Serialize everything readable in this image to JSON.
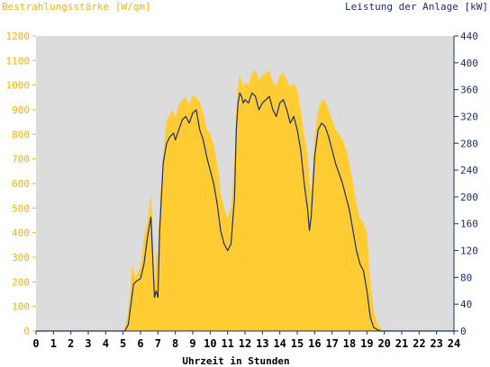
{
  "chart_data": {
    "type": "area",
    "left_axis_title": "Bestrahlungsstärke [W/qm]",
    "right_axis_title": "Leistung der Anlage [kW]",
    "xlabel": "Uhrzeit in Stunden",
    "x_ticks": [
      "0",
      "1",
      "2",
      "3",
      "4",
      "5",
      "6",
      "7",
      "8",
      "9",
      "10",
      "11",
      "12",
      "13",
      "14",
      "15",
      "16",
      "17",
      "18",
      "19",
      "20",
      "21",
      "22",
      "23",
      "24"
    ],
    "y_left_ticks": [
      "0",
      "100",
      "200",
      "300",
      "400",
      "500",
      "600",
      "700",
      "800",
      "900",
      "1000",
      "1100",
      "1200"
    ],
    "y_right_ticks": [
      "0",
      "40",
      "80",
      "120",
      "160",
      "200",
      "240",
      "280",
      "320",
      "360",
      "400",
      "440"
    ],
    "xlim": [
      0,
      24
    ],
    "ylim_left": [
      0,
      1200
    ],
    "ylim_right": [
      0,
      440
    ],
    "grid": false,
    "colors": {
      "plot_background": "#dcdcdc",
      "irradiance_fill": "#ffcc33",
      "power_line": "#1a2e6e",
      "left_axis_text": "#f0b400",
      "right_axis_text": "#1a2e6e",
      "bottom_axis_text": "#000000"
    },
    "series": [
      {
        "name": "Bestrahlungsstärke [W/qm]",
        "axis": "left",
        "kind": "area",
        "x": [
          0,
          5.0,
          5.2,
          5.4,
          5.5,
          5.7,
          6.0,
          6.2,
          6.4,
          6.6,
          6.7,
          6.8,
          6.9,
          7.0,
          7.1,
          7.3,
          7.5,
          7.7,
          7.8,
          8.0,
          8.2,
          8.4,
          8.6,
          8.8,
          9.0,
          9.2,
          9.4,
          9.6,
          9.8,
          10.0,
          10.2,
          10.4,
          10.5,
          10.6,
          10.8,
          11.0,
          11.2,
          11.4,
          11.5,
          11.6,
          11.7,
          11.8,
          11.9,
          12.0,
          12.2,
          12.4,
          12.6,
          12.8,
          13.0,
          13.2,
          13.4,
          13.6,
          13.8,
          14.0,
          14.2,
          14.4,
          14.6,
          14.8,
          15.0,
          15.2,
          15.4,
          15.6,
          15.7,
          15.8,
          16.0,
          16.2,
          16.4,
          16.6,
          16.8,
          17.0,
          17.2,
          17.4,
          17.6,
          17.8,
          18.0,
          18.2,
          18.4,
          18.6,
          18.8,
          19.0,
          19.2,
          19.4,
          19.6,
          19.8,
          20.0,
          24
        ],
        "y": [
          0,
          0,
          40,
          150,
          270,
          220,
          260,
          380,
          450,
          560,
          400,
          200,
          300,
          330,
          500,
          720,
          860,
          880,
          900,
          870,
          920,
          940,
          950,
          920,
          960,
          950,
          930,
          890,
          820,
          800,
          760,
          680,
          640,
          560,
          500,
          460,
          500,
          700,
          900,
          1000,
          1040,
          1020,
          990,
          1010,
          1000,
          1050,
          1060,
          1020,
          1040,
          1050,
          1060,
          1010,
          1000,
          1040,
          1050,
          1020,
          990,
          1010,
          980,
          900,
          800,
          720,
          600,
          560,
          800,
          900,
          940,
          940,
          900,
          860,
          820,
          800,
          780,
          740,
          680,
          600,
          520,
          460,
          440,
          400,
          200,
          80,
          30,
          10,
          0,
          0
        ]
      },
      {
        "name": "Leistung der Anlage [kW]",
        "axis": "right",
        "kind": "line",
        "x": [
          0,
          5.1,
          5.3,
          5.5,
          5.6,
          5.8,
          6.0,
          6.2,
          6.4,
          6.6,
          6.7,
          6.8,
          6.9,
          7.0,
          7.1,
          7.3,
          7.5,
          7.7,
          7.9,
          8.0,
          8.2,
          8.4,
          8.6,
          8.8,
          9.0,
          9.2,
          9.4,
          9.6,
          9.8,
          10.0,
          10.2,
          10.4,
          10.5,
          10.6,
          10.8,
          11.0,
          11.2,
          11.4,
          11.5,
          11.6,
          11.7,
          11.8,
          11.9,
          12.0,
          12.2,
          12.4,
          12.6,
          12.8,
          13.0,
          13.2,
          13.4,
          13.6,
          13.8,
          14.0,
          14.2,
          14.4,
          14.6,
          14.8,
          15.0,
          15.2,
          15.4,
          15.6,
          15.7,
          15.8,
          16.0,
          16.2,
          16.4,
          16.6,
          16.8,
          17.0,
          17.2,
          17.4,
          17.6,
          17.8,
          18.0,
          18.2,
          18.4,
          18.6,
          18.8,
          19.0,
          19.2,
          19.4,
          19.6,
          19.8,
          20.0,
          24
        ],
        "y": [
          0,
          0,
          10,
          50,
          70,
          75,
          78,
          100,
          140,
          170,
          110,
          50,
          60,
          50,
          150,
          250,
          280,
          290,
          295,
          285,
          300,
          315,
          320,
          310,
          325,
          330,
          300,
          285,
          260,
          240,
          220,
          190,
          170,
          150,
          130,
          120,
          130,
          200,
          300,
          340,
          355,
          350,
          340,
          345,
          340,
          355,
          350,
          330,
          340,
          345,
          350,
          330,
          320,
          340,
          345,
          330,
          310,
          320,
          300,
          270,
          220,
          180,
          150,
          170,
          260,
          300,
          310,
          305,
          290,
          270,
          250,
          235,
          220,
          200,
          180,
          150,
          120,
          100,
          90,
          60,
          20,
          5,
          2,
          0,
          0,
          0
        ]
      }
    ]
  }
}
